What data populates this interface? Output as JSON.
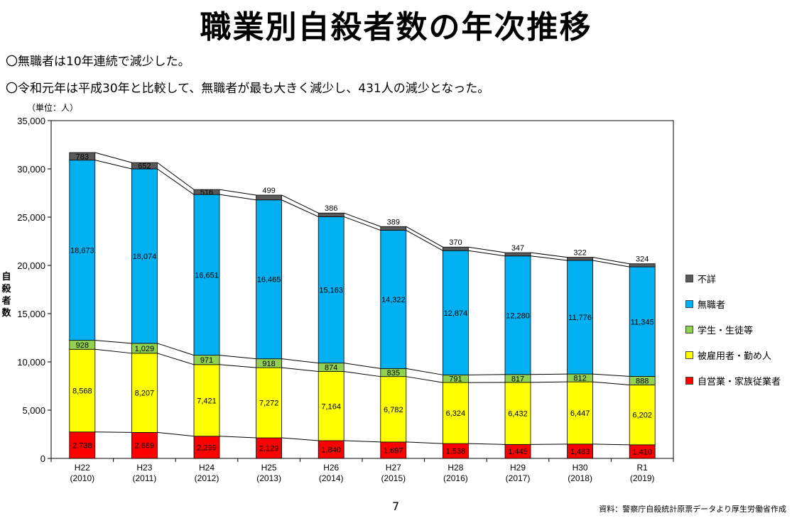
{
  "title": "職業別自殺者数の年次推移",
  "notes": [
    "〇無職者は10年連続で減少した。",
    "〇令和元年は平成30年と比較して、無職者が最も大きく減少し、431人の減少となった。"
  ],
  "unit_label": "（単位：人）",
  "page_number": "7",
  "source": "資料：警察庁自殺統計原票データより厚生労働省作成",
  "chart_data": {
    "type": "bar",
    "stacked": true,
    "title": "職業別自殺者数の年次推移",
    "xlabel": "",
    "ylabel": "自殺者数",
    "ylim": [
      0,
      35000
    ],
    "yticks": [
      "0",
      "5,000",
      "10,000",
      "15,000",
      "20,000",
      "25,000",
      "30,000",
      "35,000"
    ],
    "ytick_values": [
      0,
      5000,
      10000,
      15000,
      20000,
      25000,
      30000,
      35000
    ],
    "categories": [
      "H22",
      "H23",
      "H24",
      "H25",
      "H26",
      "H27",
      "H28",
      "H29",
      "H30",
      "R1"
    ],
    "category_years": [
      "(2010)",
      "(2011)",
      "(2012)",
      "(2013)",
      "(2014)",
      "(2015)",
      "(2016)",
      "(2017)",
      "(2018)",
      "(2019)"
    ],
    "series": [
      {
        "name": "自営業・家族従業者",
        "color": "#ff0000",
        "values": [
          2738,
          2689,
          2299,
          2129,
          1840,
          1697,
          1538,
          1445,
          1483,
          1410
        ],
        "labels": [
          "2,738",
          "2,689",
          "2,299",
          "2,129",
          "1,840",
          "1,697",
          "1,538",
          "1,445",
          "1,483",
          "1,410"
        ]
      },
      {
        "name": "被雇用者・勤め人",
        "color": "#ffff00",
        "values": [
          8568,
          8207,
          7421,
          7272,
          7164,
          6782,
          6324,
          6432,
          6447,
          6202
        ],
        "labels": [
          "8,568",
          "8,207",
          "7,421",
          "7,272",
          "7,164",
          "6,782",
          "6,324",
          "6,432",
          "6,447",
          "6,202"
        ]
      },
      {
        "name": "学生・生徒等",
        "color": "#92d050",
        "values": [
          928,
          1029,
          971,
          918,
          874,
          835,
          791,
          817,
          812,
          888
        ],
        "labels": [
          "928",
          "1,029",
          "971",
          "918",
          "874",
          "835",
          "791",
          "817",
          "812",
          "888"
        ]
      },
      {
        "name": "無職者",
        "color": "#00b0f0",
        "values": [
          18673,
          18074,
          16651,
          16465,
          15163,
          14322,
          12874,
          12280,
          11776,
          11345
        ],
        "labels": [
          "18,673",
          "18,074",
          "16,651",
          "16,465",
          "15,163",
          "14,322",
          "12,874",
          "12,280",
          "11,776",
          "11,345"
        ]
      },
      {
        "name": "不詳",
        "color": "#595959",
        "values": [
          783,
          652,
          516,
          499,
          386,
          389,
          370,
          347,
          322,
          324
        ],
        "labels": [
          "783",
          "652",
          "516",
          "499",
          "386",
          "389",
          "370",
          "347",
          "322",
          "324"
        ]
      }
    ],
    "legend_order": [
      "不詳",
      "無職者",
      "学生・生徒等",
      "被雇用者・勤め人",
      "自営業・家族従業者"
    ],
    "legend_position": "right",
    "grid": false
  }
}
